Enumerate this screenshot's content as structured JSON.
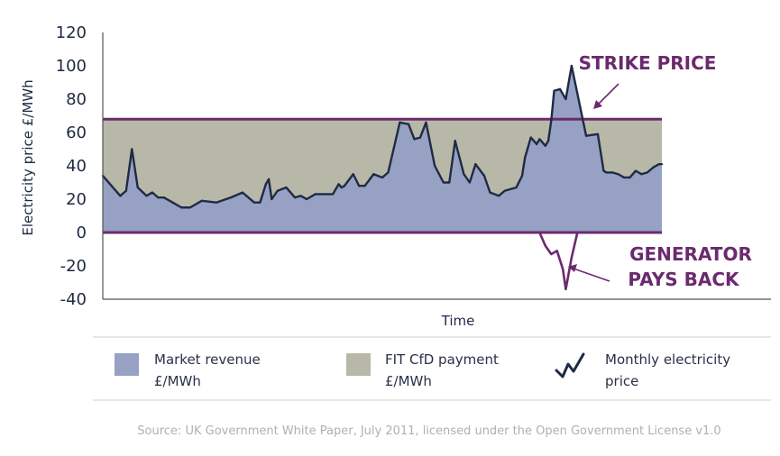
{
  "chart_data": {
    "type": "area",
    "xlabel": "Time",
    "ylabel": "Electricity price £/MWh",
    "ylim": [
      -40,
      120
    ],
    "yticks": [
      120,
      100,
      80,
      60,
      40,
      20,
      0,
      -20,
      -40
    ],
    "strike_price": 68,
    "grid": false,
    "x": [
      0,
      3,
      6,
      8,
      10,
      12,
      15,
      17,
      19,
      21,
      24,
      27,
      30,
      34,
      39,
      44,
      48,
      52,
      54,
      56,
      57,
      58,
      60,
      63,
      66,
      68,
      70,
      73,
      76,
      79,
      81,
      82,
      83,
      86,
      88,
      90,
      93,
      96,
      98,
      102,
      105,
      107,
      109,
      111,
      114,
      117,
      119,
      121,
      124,
      126,
      128,
      131,
      133,
      136,
      138,
      140,
      142,
      144,
      145,
      147,
      149,
      150,
      152,
      153,
      154,
      155,
      157,
      159,
      161,
      166,
      170,
      172,
      173,
      175,
      177,
      179,
      181,
      183,
      185,
      187,
      189,
      191,
      192
    ],
    "series": [
      {
        "name": "Monthly electricity price",
        "values": [
          34,
          28,
          22,
          25,
          50,
          27,
          22,
          24,
          21,
          21,
          18,
          15,
          15,
          19,
          18,
          21,
          24,
          18,
          18,
          29,
          32,
          20,
          25,
          27,
          21,
          22,
          20,
          23,
          23,
          23,
          29,
          27,
          28,
          35,
          28,
          28,
          35,
          33,
          36,
          66,
          65,
          56,
          57,
          66,
          40,
          30,
          30,
          55,
          35,
          30,
          41,
          34,
          24,
          22,
          25,
          26,
          27,
          34,
          45,
          57,
          53,
          56,
          52,
          55,
          67,
          85,
          86,
          80,
          100,
          58,
          59,
          37,
          36,
          36,
          35,
          33,
          33,
          37,
          35,
          36,
          39,
          41,
          41
        ]
      }
    ],
    "annotations": [
      "STRIKE PRICE",
      "GENERATOR",
      "PAYS BACK"
    ],
    "legend": [
      {
        "label_line1": "Market revenue",
        "label_line2": "£/MWh",
        "color": "#96a1c3"
      },
      {
        "label_line1": "FIT CfD payment",
        "label_line2": "£/MWh",
        "color": "#b8b8a8"
      },
      {
        "label_line1": "Monthly electricity",
        "label_line2": "price",
        "color": "#1f2a44"
      }
    ],
    "source": "Source: UK Government White Paper, July 2011, licensed under the Open Government License v1.0",
    "colors": {
      "market_revenue": "#96a1c3",
      "cfd_payment": "#b8b8a8",
      "price_line": "#1f2a44",
      "strike_line": "#6b2a6e",
      "annotation": "#6b2a6e",
      "axis": "#555555",
      "separator": "#cfcfcf"
    }
  }
}
